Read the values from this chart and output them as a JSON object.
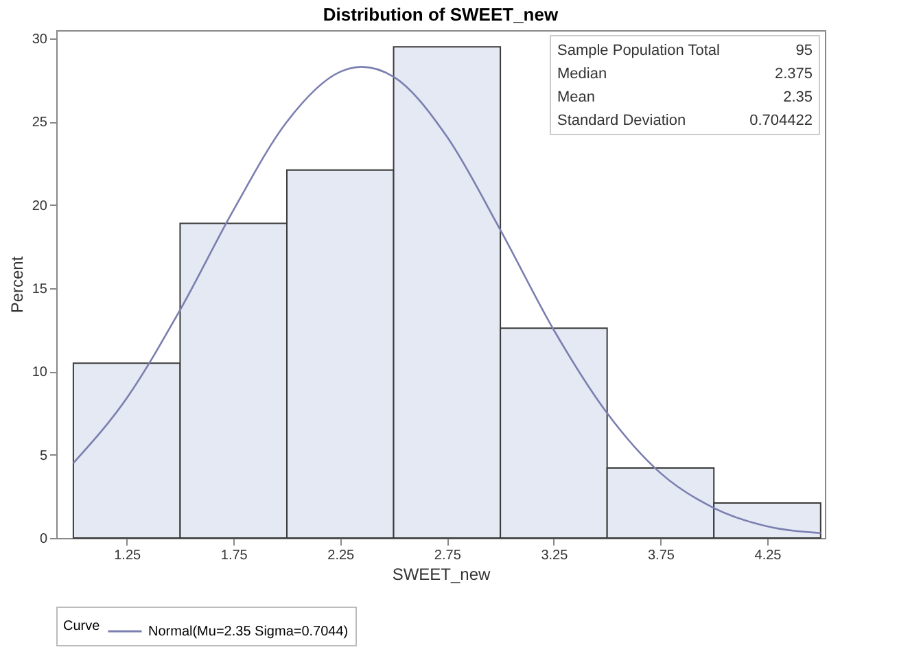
{
  "chart_data": {
    "type": "histogram",
    "title": "Distribution of SWEET_new",
    "xlabel": "SWEET_new",
    "ylabel": "Percent",
    "bins": [
      1.0,
      1.5,
      2.0,
      2.5,
      3.0,
      3.5,
      4.0,
      4.5
    ],
    "values": [
      10.5,
      18.9,
      22.1,
      29.5,
      12.6,
      4.2,
      2.1
    ],
    "color": "#e4e9f3",
    "series": [
      {
        "type": "line",
        "name": "Normal(Mu=2.35 Sigma=0.7044)",
        "color": "#7a7fb0",
        "x": [
          1.0,
          1.25,
          1.5,
          1.75,
          2.0,
          2.25,
          2.35,
          2.5,
          2.75,
          3.0,
          3.25,
          3.5,
          3.75,
          4.0,
          4.25,
          4.5
        ],
        "values": [
          4.5,
          8.4,
          13.7,
          19.7,
          25.0,
          28.0,
          28.3,
          27.7,
          24.1,
          18.5,
          12.5,
          7.5,
          3.9,
          1.8,
          0.7,
          0.3
        ]
      }
    ],
    "legend_title": "Curve",
    "legend": "bottom",
    "xlim": [
      0.92,
      4.52
    ],
    "xticks": [
      1.25,
      1.75,
      2.25,
      2.75,
      3.25,
      3.75,
      4.25
    ],
    "ylim": [
      0,
      30.5
    ],
    "yticks": [
      0,
      5,
      10,
      15,
      20,
      25,
      30
    ],
    "grid": false,
    "annotations": [
      "Sample Population Total",
      "95",
      "Median",
      "2.375",
      "Mean",
      "2.35",
      "Standard Deviation",
      "0.704422"
    ]
  }
}
